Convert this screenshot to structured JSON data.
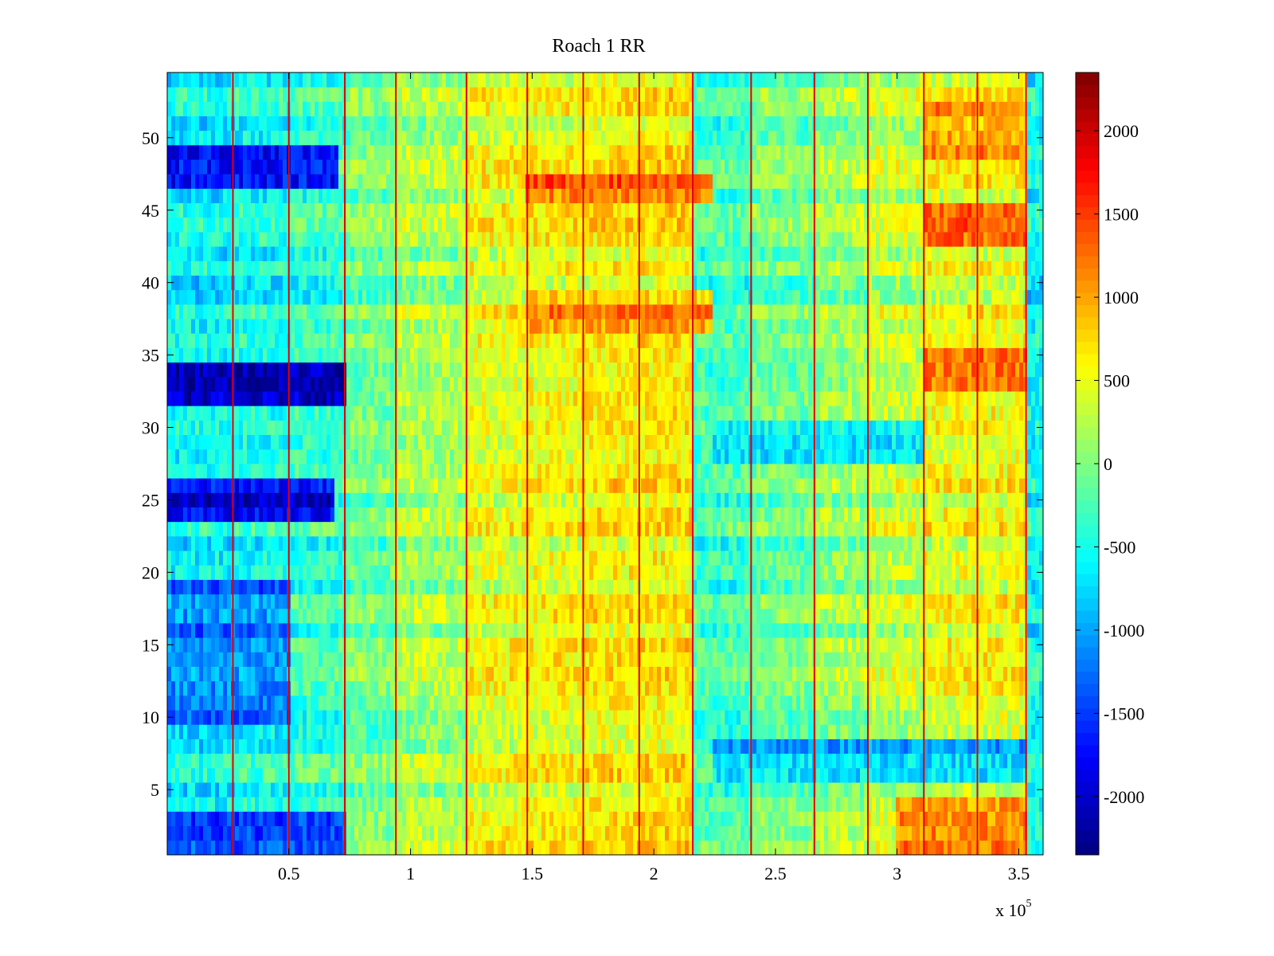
{
  "chart_data": {
    "type": "heatmap",
    "title": "Roach 1 RR",
    "xlabel": "",
    "ylabel": "",
    "x_range": [
      0,
      360000
    ],
    "y_range": [
      0.5,
      54.5
    ],
    "x_multiplier_label": {
      "prefix": "x 10",
      "exponent": "5"
    },
    "x_ticks": [
      {
        "value": 50000,
        "label": "0.5"
      },
      {
        "value": 100000,
        "label": "1"
      },
      {
        "value": 150000,
        "label": "1.5"
      },
      {
        "value": 200000,
        "label": "2"
      },
      {
        "value": 250000,
        "label": "2.5"
      },
      {
        "value": 300000,
        "label": "3"
      },
      {
        "value": 350000,
        "label": "3.5"
      }
    ],
    "y_ticks": [
      {
        "value": 5,
        "label": "5"
      },
      {
        "value": 10,
        "label": "10"
      },
      {
        "value": 15,
        "label": "15"
      },
      {
        "value": 20,
        "label": "20"
      },
      {
        "value": 25,
        "label": "25"
      },
      {
        "value": 30,
        "label": "30"
      },
      {
        "value": 35,
        "label": "35"
      },
      {
        "value": 40,
        "label": "40"
      },
      {
        "value": 45,
        "label": "45"
      },
      {
        "value": 50,
        "label": "50"
      }
    ],
    "colormap": "jet",
    "clim": [
      -2350,
      2350
    ],
    "colorbar_ticks": [
      {
        "value": 2000,
        "label": "2000"
      },
      {
        "value": 1500,
        "label": "1500"
      },
      {
        "value": 1000,
        "label": "1000"
      },
      {
        "value": 500,
        "label": "500"
      },
      {
        "value": 0,
        "label": "0"
      },
      {
        "value": -500,
        "label": "-500"
      },
      {
        "value": -1000,
        "label": "-1000"
      },
      {
        "value": -1500,
        "label": "-1500"
      },
      {
        "value": -2000,
        "label": "-2000"
      }
    ],
    "rows": 54,
    "column_segments_x": [
      0,
      27000,
      50000,
      73000,
      94000,
      123000,
      148000,
      171000,
      194000,
      216000,
      240000,
      266000,
      288000,
      311000,
      333000,
      353000,
      360000
    ],
    "segment_base_values": [
      -600,
      -500,
      -350,
      -100,
      150,
      450,
      520,
      600,
      640,
      -300,
      -100,
      80,
      280,
      480,
      520,
      -600
    ],
    "row_band_overrides": [
      {
        "rows": [
          47,
          49
        ],
        "x_end": 70000,
        "value": -1900
      },
      {
        "rows": [
          32,
          34
        ],
        "x_end": 73000,
        "value": -2100
      },
      {
        "rows": [
          24,
          26
        ],
        "x_end": 68000,
        "value": -1900
      },
      {
        "rows": [
          1,
          3
        ],
        "x_end": 73000,
        "value": -1600
      },
      {
        "rows": [
          10,
          19
        ],
        "x_end": 50000,
        "value": -1200
      },
      {
        "rows": [
          46,
          47
        ],
        "x_start": 148000,
        "x_end": 224000,
        "value": 1250
      },
      {
        "rows": [
          37,
          39
        ],
        "x_start": 148000,
        "x_end": 224000,
        "value": 1000
      },
      {
        "rows": [
          6,
          8
        ],
        "x_start": 224000,
        "x_end": 353000,
        "value": -900
      },
      {
        "rows": [
          28,
          30
        ],
        "x_start": 224000,
        "x_end": 311000,
        "value": -650
      },
      {
        "rows": [
          33,
          35
        ],
        "x_start": 311000,
        "x_end": 353000,
        "value": 1250
      },
      {
        "rows": [
          43,
          45
        ],
        "x_start": 311000,
        "x_end": 353000,
        "value": 1150
      },
      {
        "rows": [
          49,
          52
        ],
        "x_start": 311000,
        "x_end": 353000,
        "value": 1050
      },
      {
        "rows": [
          1,
          4
        ],
        "x_start": 300000,
        "x_end": 353000,
        "value": 1000
      }
    ],
    "vertical_streak_x": [
      27000,
      50000,
      73000,
      94000,
      123000,
      148000,
      171000,
      194000,
      216000,
      240000,
      266000,
      288000,
      311000,
      333000,
      353000
    ],
    "streak_value": 1900
  }
}
